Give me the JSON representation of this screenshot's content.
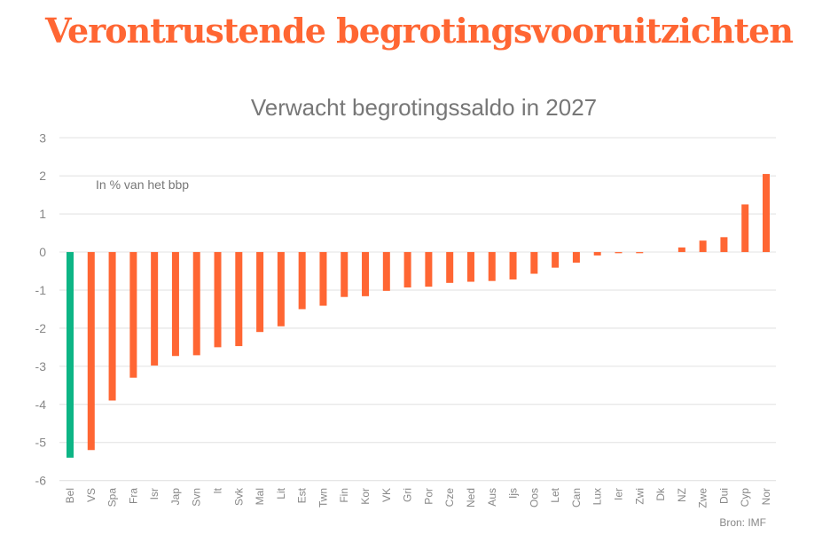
{
  "headline": "Verontrustende begrotingsvooruitzichten",
  "chart_data": {
    "type": "bar",
    "title": "Verwacht begrotingssaldo in 2027",
    "annotation": "In % van het bbp",
    "source": "Bron: IMF",
    "xlabel": "",
    "ylabel": "",
    "ylim": [
      -6,
      3
    ],
    "yticks": [
      3,
      2,
      1,
      0,
      -1,
      -2,
      -3,
      -4,
      -5,
      -6
    ],
    "grid": true,
    "colors": {
      "default": "#ff6633",
      "highlight": "#0db585"
    },
    "highlight": "Bel",
    "categories": [
      "Bel",
      "VS",
      "Spa",
      "Fra",
      "Isr",
      "Jap",
      "Svn",
      "It",
      "Svk",
      "Mal",
      "Lit",
      "Est",
      "Twn",
      "Fin",
      "Kor",
      "VK",
      "Gri",
      "Por",
      "Cze",
      "Ned",
      "Aus",
      "Ijs",
      "Oos",
      "Let",
      "Can",
      "Lux",
      "Ier",
      "Zwi",
      "Dk",
      "NZ",
      "Zwe",
      "Dui",
      "Cyp",
      "Nor"
    ],
    "values": [
      -5.4,
      -5.2,
      -3.9,
      -3.3,
      -2.98,
      -2.73,
      -2.71,
      -2.5,
      -2.47,
      -2.1,
      -1.95,
      -1.5,
      -1.41,
      -1.18,
      -1.16,
      -1.02,
      -0.93,
      -0.91,
      -0.81,
      -0.78,
      -0.76,
      -0.72,
      -0.57,
      -0.41,
      -0.28,
      -0.09,
      -0.03,
      -0.03,
      0,
      0.12,
      0.3,
      0.39,
      1.25,
      2.05
    ]
  }
}
